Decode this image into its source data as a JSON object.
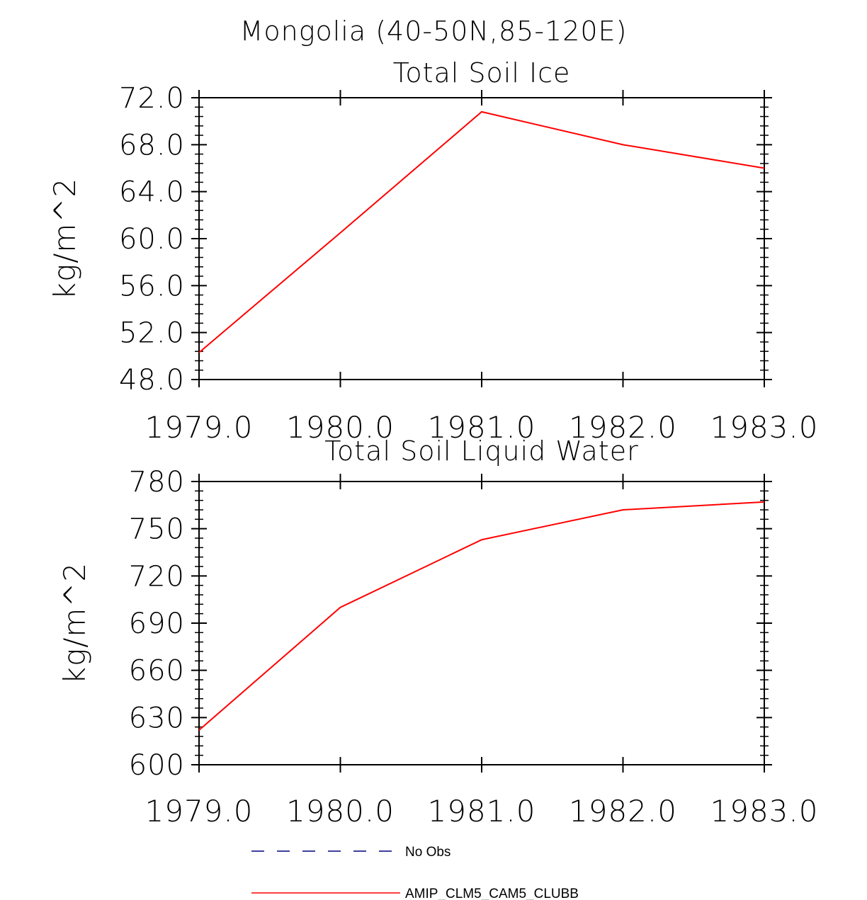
{
  "figure_title": "Mongolia (40-50N,85-120E)",
  "chart_data": [
    {
      "type": "line",
      "title": "Total Soil Ice",
      "xlabel": "",
      "ylabel": "kg/m^2",
      "xlim": [
        1979,
        1983
      ],
      "ylim": [
        48,
        72
      ],
      "x_ticks": [
        "1979.0",
        "1980.0",
        "1981.0",
        "1982.0",
        "1983.0"
      ],
      "y_ticks": [
        "48.0",
        "52.0",
        "56.0",
        "60.0",
        "64.0",
        "68.0",
        "72.0"
      ],
      "series": [
        {
          "name": "AMIP_CLM5_CAM5_CLUBB",
          "color": "#ff0000",
          "x": [
            1979,
            1980,
            1981,
            1982,
            1983
          ],
          "values": [
            50.3,
            60.5,
            70.8,
            68.0,
            66.0
          ]
        }
      ]
    },
    {
      "type": "line",
      "title": "Total Soil Liquid Water",
      "xlabel": "",
      "ylabel": "kg/m^2",
      "xlim": [
        1979,
        1983
      ],
      "ylim": [
        600,
        780
      ],
      "x_ticks": [
        "1979.0",
        "1980.0",
        "1981.0",
        "1982.0",
        "1983.0"
      ],
      "y_ticks": [
        "600",
        "630",
        "660",
        "690",
        "720",
        "750",
        "780"
      ],
      "series": [
        {
          "name": "AMIP_CLM5_CAM5_CLUBB",
          "color": "#ff0000",
          "x": [
            1979,
            1980,
            1981,
            1982,
            1983
          ],
          "values": [
            622,
            700,
            743,
            762,
            767
          ]
        }
      ]
    }
  ],
  "legend": [
    {
      "label": "No Obs",
      "color": "#000080",
      "style": "dashed"
    },
    {
      "label": "AMIP_CLM5_CAM5_CLUBB",
      "color": "#ff0000",
      "style": "solid"
    }
  ]
}
